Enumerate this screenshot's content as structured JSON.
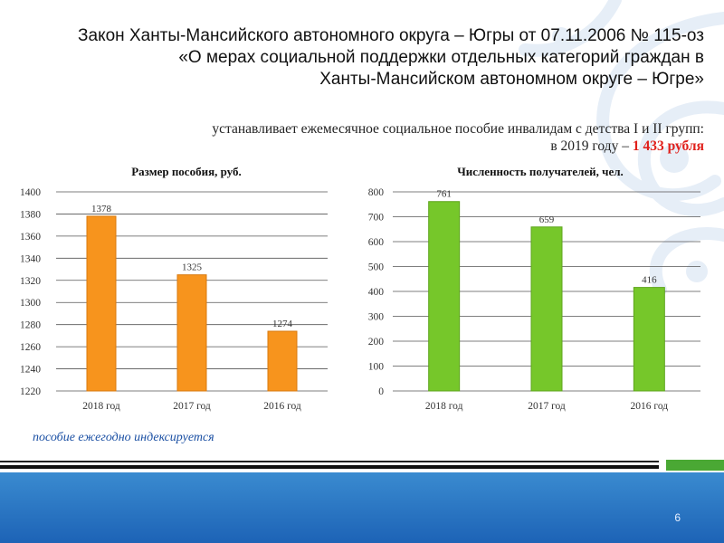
{
  "header": {
    "title_lines": [
      "Закон Ханты-Мансийского автономного округа – Югры от 07.11.2006 № 115-оз",
      "«О мерах социальной поддержки отдельных категорий граждан в",
      "Ханты-Мансийском автономном округе – Югре»"
    ],
    "subtitle_line1": "устанавливает  ежемесячное социальное пособие инвалидам с детства I и II групп:",
    "subtitle_line2_prefix": "в 2019 году – ",
    "subtitle_amount": "1 433 рубля"
  },
  "note": "пособие ежегодно индексируется",
  "page_number": "6",
  "colors": {
    "orange": "#f7941d",
    "orange_edge": "#d97a0e",
    "green": "#76c72a",
    "green_edge": "#5ea51c",
    "footer_blue": "#2a74c4",
    "accent_red": "#e0201b",
    "note_blue": "#1a4fa3"
  },
  "chart_data": [
    {
      "type": "bar",
      "title": "Размер пособия, руб.",
      "categories": [
        "2018 год",
        "2017 год",
        "2016 год"
      ],
      "values": [
        1378,
        1325,
        1274
      ],
      "data_labels": [
        "1378",
        "1325",
        "1274"
      ],
      "ylim": [
        1220,
        1400
      ],
      "yticks": [
        1220,
        1240,
        1260,
        1280,
        1300,
        1320,
        1340,
        1360,
        1380,
        1400
      ],
      "grid": true,
      "color": "#f7941d"
    },
    {
      "type": "bar",
      "title": "Численность получателей, чел.",
      "categories": [
        "2018 год",
        "2017 год",
        "2016 год"
      ],
      "values": [
        761,
        659,
        416
      ],
      "data_labels": [
        "761",
        "659",
        "416"
      ],
      "ylim": [
        0,
        800
      ],
      "yticks": [
        0,
        100,
        200,
        300,
        400,
        500,
        600,
        700,
        800
      ],
      "grid": true,
      "color": "#76c72a"
    }
  ]
}
